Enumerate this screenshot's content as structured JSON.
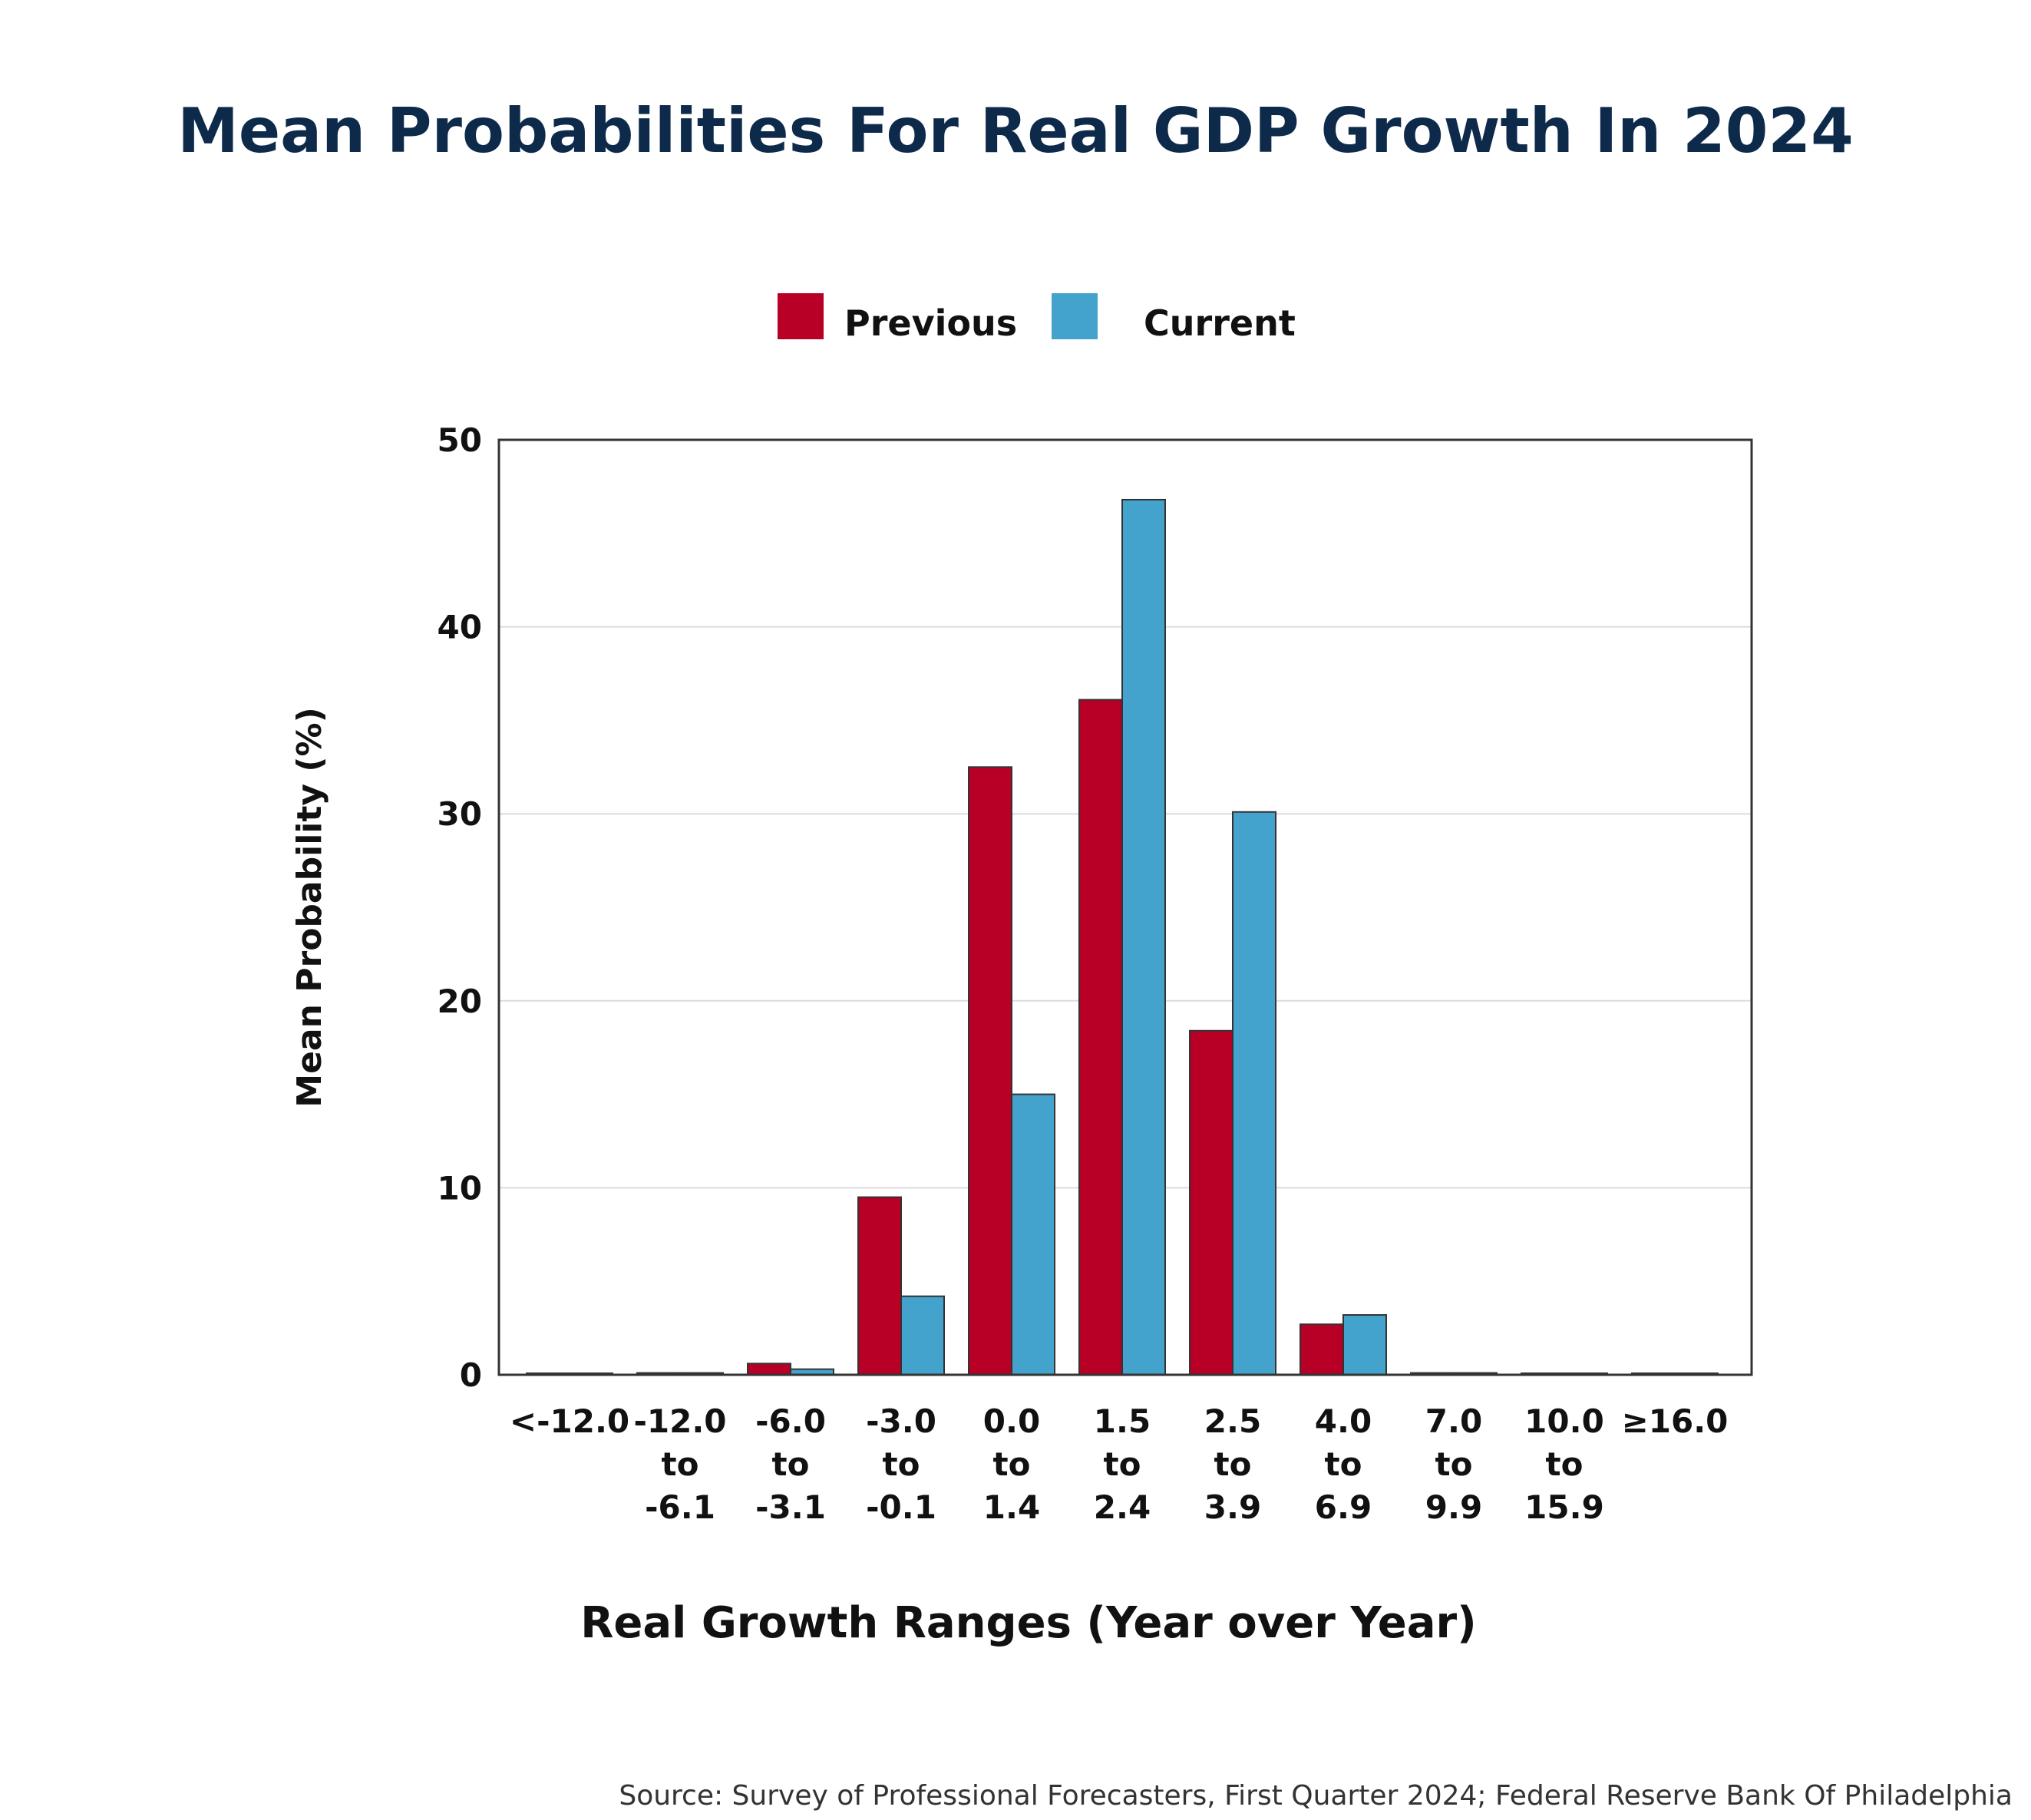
{
  "colors": {
    "title": "#0e2a4b",
    "previous": "#b80027",
    "current": "#44a3cc",
    "text": "#111111",
    "grid": "#dcdcdc",
    "frame": "#333333",
    "source": "#333333"
  },
  "chart_data": {
    "type": "bar",
    "title": "Mean Probabilities For Real GDP Growth In 2024",
    "xlabel": "Real Growth Ranges (Year over Year)",
    "ylabel": "Mean Probability (%)",
    "ylim": [
      0,
      50
    ],
    "yticks": [
      0,
      10,
      20,
      30,
      40,
      50
    ],
    "grid": "horizontal",
    "legend_position": "top-center",
    "categories": [
      [
        "<-12.0"
      ],
      [
        "-12.0",
        "to",
        "-6.1"
      ],
      [
        "-6.0",
        "to",
        "-3.1"
      ],
      [
        "-3.0",
        "to",
        "-0.1"
      ],
      [
        "0.0",
        "to",
        "1.4"
      ],
      [
        "1.5",
        "to",
        "2.4"
      ],
      [
        "2.5",
        "to",
        "3.9"
      ],
      [
        "4.0",
        "to",
        "6.9"
      ],
      [
        "7.0",
        "to",
        "9.9"
      ],
      [
        "10.0",
        "to",
        "15.9"
      ],
      [
        "≥16.0"
      ]
    ],
    "series": [
      {
        "name": "Previous",
        "values": [
          0.0,
          0.1,
          0.6,
          9.5,
          32.5,
          36.1,
          18.4,
          2.7,
          0.1,
          0.0,
          0.0
        ]
      },
      {
        "name": "Current",
        "values": [
          0.0,
          0.1,
          0.3,
          4.2,
          15.0,
          46.8,
          30.1,
          3.2,
          0.1,
          0.0,
          0.0
        ]
      }
    ],
    "source": "Source: Survey of Professional Forecasters, First Quarter 2024; Federal Reserve Bank Of Philadelphia"
  }
}
